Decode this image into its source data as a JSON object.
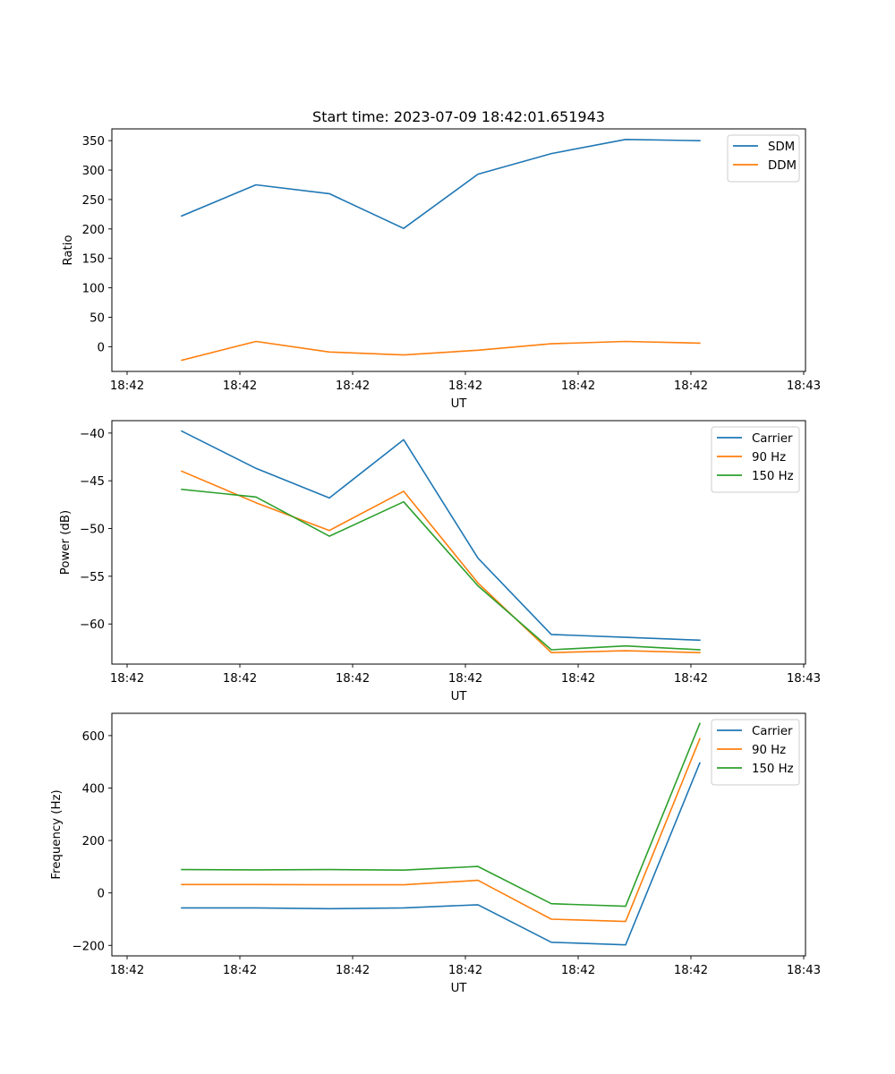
{
  "chart_data": [
    {
      "type": "line",
      "title": "Start time: 2023-07-09 18:42:01.651943",
      "xlabel": "UT",
      "ylabel": "Ratio",
      "x": [
        0.484,
        1.143,
        1.794,
        2.452,
        3.111,
        3.762,
        4.421,
        5.079
      ],
      "xlim": [
        -0.135,
        6.016
      ],
      "xticks": [
        0,
        1,
        2,
        3,
        4,
        5,
        6
      ],
      "xtick_labels": [
        "18:42",
        "18:42",
        "18:42",
        "18:42",
        "18:42",
        "18:42",
        "18:43"
      ],
      "ylim": [
        -42,
        370
      ],
      "yticks": [
        0,
        50,
        100,
        150,
        200,
        250,
        300,
        350
      ],
      "ytick_labels": [
        "0",
        "50",
        "100",
        "150",
        "200",
        "250",
        "300",
        "350"
      ],
      "legend": "top-right",
      "grid": false,
      "series": [
        {
          "name": "SDM",
          "color": "#1f77b4",
          "values": [
            222,
            275,
            260,
            201,
            293,
            328,
            352,
            350
          ]
        },
        {
          "name": "DDM",
          "color": "#ff7f0e",
          "values": [
            -23,
            9,
            -9,
            -14,
            -6,
            5,
            9,
            6
          ]
        }
      ]
    },
    {
      "type": "line",
      "title": "",
      "xlabel": "UT",
      "ylabel": "Power (dB)",
      "x": [
        0.484,
        1.143,
        1.794,
        2.452,
        3.111,
        3.762,
        4.421,
        5.079
      ],
      "xlim": [
        -0.135,
        6.016
      ],
      "xticks": [
        0,
        1,
        2,
        3,
        4,
        5,
        6
      ],
      "xtick_labels": [
        "18:42",
        "18:42",
        "18:42",
        "18:42",
        "18:42",
        "18:42",
        "18:43"
      ],
      "ylim": [
        -64.2,
        -38.7
      ],
      "yticks": [
        -60,
        -55,
        -50,
        -45,
        -40
      ],
      "ytick_labels": [
        "−60",
        "−55",
        "−50",
        "−45",
        "−40"
      ],
      "legend": "top-right",
      "grid": false,
      "series": [
        {
          "name": "Carrier",
          "color": "#1f77b4",
          "values": [
            -39.8,
            -43.7,
            -46.8,
            -40.7,
            -53.1,
            -61.1,
            -61.4,
            -61.7
          ]
        },
        {
          "name": "90 Hz",
          "color": "#ff7f0e",
          "values": [
            -44.0,
            -47.3,
            -50.2,
            -46.1,
            -55.7,
            -63.0,
            -62.8,
            -63.0
          ]
        },
        {
          "name": "150 Hz",
          "color": "#2ca02c",
          "values": [
            -45.9,
            -46.7,
            -50.8,
            -47.2,
            -56.0,
            -62.7,
            -62.3,
            -62.7
          ]
        }
      ]
    },
    {
      "type": "line",
      "title": "",
      "xlabel": "UT",
      "ylabel": "Frequency (Hz)",
      "x": [
        0.484,
        1.143,
        1.794,
        2.452,
        3.111,
        3.762,
        4.421,
        5.079
      ],
      "xlim": [
        -0.135,
        6.016
      ],
      "xticks": [
        0,
        1,
        2,
        3,
        4,
        5,
        6
      ],
      "xtick_labels": [
        "18:42",
        "18:42",
        "18:42",
        "18:42",
        "18:42",
        "18:42",
        "18:43"
      ],
      "ylim": [
        -240,
        685
      ],
      "yticks": [
        -200,
        0,
        200,
        400,
        600
      ],
      "ytick_labels": [
        "−200",
        "0",
        "200",
        "400",
        "600"
      ],
      "legend": "top-right",
      "grid": false,
      "series": [
        {
          "name": "Carrier",
          "color": "#1f77b4",
          "values": [
            -57,
            -57,
            -60,
            -57,
            -45,
            -188,
            -198,
            496
          ]
        },
        {
          "name": "90 Hz",
          "color": "#ff7f0e",
          "values": [
            32,
            32,
            31,
            31,
            48,
            -100,
            -109,
            588
          ]
        },
        {
          "name": "150 Hz",
          "color": "#2ca02c",
          "values": [
            89,
            88,
            89,
            87,
            101,
            -41,
            -51,
            646
          ]
        }
      ]
    }
  ]
}
